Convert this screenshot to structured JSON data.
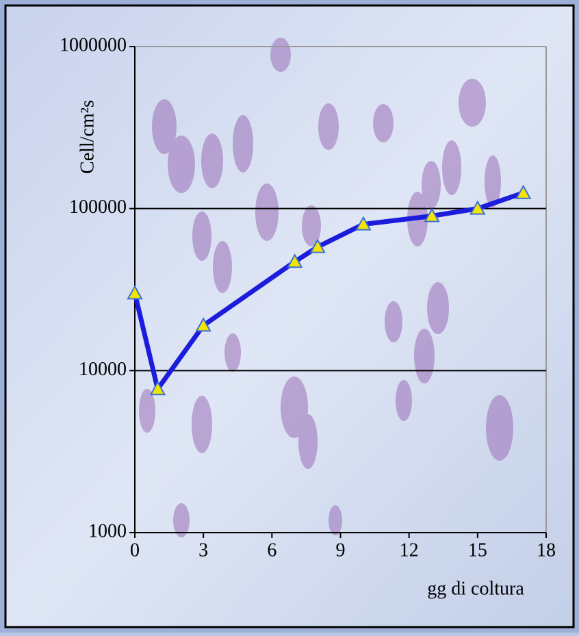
{
  "chart_data": {
    "type": "line",
    "ylabel": "Cell/cm²s",
    "xlabel": "gg di coltura",
    "x": [
      0,
      1,
      3,
      7,
      8,
      10,
      13,
      15,
      17
    ],
    "series": [
      {
        "color": "#1c1cdc",
        "values": [
          30000,
          7700,
          19000,
          47000,
          58000,
          80000,
          90000,
          100000,
          125000
        ]
      }
    ],
    "xlim": [
      0,
      18
    ],
    "xticks": [
      0,
      3,
      6,
      9,
      12,
      15,
      18
    ],
    "ylim": [
      1000,
      1000000
    ],
    "yticks": [
      1000,
      10000,
      100000,
      1000000
    ],
    "ylog": true,
    "grid": true,
    "marker_color": "#f2e600"
  }
}
